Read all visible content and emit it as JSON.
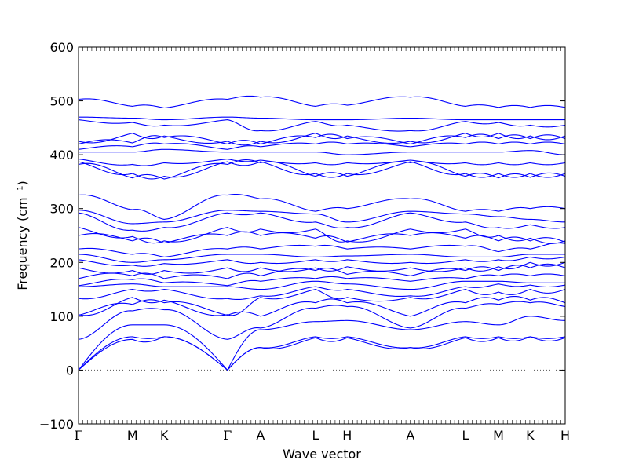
{
  "chart_data": {
    "type": "line",
    "title": "",
    "xlabel": "Wave vector",
    "ylabel": "Frequency (cm⁻¹)",
    "ylim": [
      -100,
      600
    ],
    "yticks": [
      -100,
      0,
      100,
      200,
      300,
      400,
      500,
      600
    ],
    "grid": false,
    "legend": "none",
    "line_color": "#0000ff",
    "zero_line": {
      "y": 0,
      "style": "dotted",
      "color": "#555555"
    },
    "segments": [
      {
        "from": "Γ",
        "to": "M"
      },
      {
        "from": "M",
        "to": "K"
      },
      {
        "from": "K",
        "to": "Γ"
      },
      {
        "from": "Γ",
        "to": "A"
      },
      {
        "from": "A",
        "to": "L"
      },
      {
        "from": "L",
        "to": "H"
      },
      {
        "from": "H",
        "to": "A"
      },
      {
        "from": "A",
        "to": "L"
      },
      {
        "from": "L",
        "to": "M"
      },
      {
        "from": "M",
        "to": "K"
      },
      {
        "from": "K",
        "to": "H"
      }
    ],
    "x_ticks": [
      {
        "label": "Γ",
        "pos": 0.0
      },
      {
        "label": "M",
        "pos": 0.111
      },
      {
        "label": "K",
        "pos": 0.176
      },
      {
        "label": "Γ",
        "pos": 0.306
      },
      {
        "label": "A",
        "pos": 0.374
      },
      {
        "label": "L",
        "pos": 0.487
      },
      {
        "label": "H",
        "pos": 0.552
      },
      {
        "label": "A",
        "pos": 0.682
      },
      {
        "label": "L",
        "pos": 0.795
      },
      {
        "label": "M",
        "pos": 0.863
      },
      {
        "label": "K",
        "pos": 0.928
      },
      {
        "label": "H",
        "pos": 1.0
      }
    ],
    "band_frequencies_at_high_symmetry_points": [
      {
        "label": "Γ",
        "values": [
          0,
          0,
          0,
          57,
          102,
          103,
          133,
          155,
          157,
          170,
          190,
          205,
          215,
          225,
          250,
          265,
          292,
          297,
          325,
          382,
          387,
          392,
          405,
          410,
          420,
          425,
          465,
          470,
          503
        ]
      },
      {
        "label": "M",
        "values": [
          57,
          62,
          84,
          110,
          122,
          135,
          150,
          160,
          168,
          175,
          185,
          195,
          200,
          215,
          240,
          248,
          260,
          272,
          298,
          357,
          365,
          382,
          405,
          415,
          422,
          440,
          460,
          468,
          490
        ]
      },
      {
        "label": "K",
        "values": [
          62,
          62,
          84,
          112,
          125,
          130,
          150,
          155,
          162,
          170,
          185,
          198,
          205,
          210,
          236,
          240,
          265,
          275,
          280,
          355,
          360,
          385,
          410,
          420,
          432,
          435,
          455,
          465,
          487
        ]
      },
      {
        "label": "Γ",
        "values": [
          0,
          0,
          0,
          57,
          102,
          103,
          133,
          155,
          157,
          170,
          190,
          205,
          215,
          225,
          250,
          265,
          292,
          297,
          325,
          382,
          387,
          392,
          405,
          410,
          420,
          425,
          465,
          470,
          503
        ]
      },
      {
        "label": "A",
        "values": [
          42,
          42,
          75,
          78,
          100,
          135,
          138,
          150,
          165,
          175,
          190,
          200,
          215,
          225,
          250,
          262,
          292,
          295,
          318,
          385,
          387,
          390,
          405,
          415,
          420,
          425,
          445,
          468,
          507
        ]
      },
      {
        "label": "L",
        "values": [
          60,
          62,
          90,
          115,
          125,
          150,
          155,
          165,
          170,
          185,
          190,
          205,
          210,
          230,
          245,
          262,
          275,
          290,
          295,
          360,
          365,
          385,
          405,
          420,
          432,
          440,
          462,
          465,
          490
        ]
      },
      {
        "label": "H",
        "values": [
          60,
          62,
          92,
          118,
          125,
          135,
          150,
          160,
          170,
          178,
          192,
          205,
          212,
          225,
          238,
          240,
          265,
          275,
          300,
          360,
          365,
          385,
          400,
          420,
          430,
          435,
          455,
          465,
          492
        ]
      },
      {
        "label": "A",
        "values": [
          42,
          42,
          75,
          78,
          100,
          135,
          138,
          150,
          165,
          175,
          190,
          200,
          215,
          225,
          250,
          262,
          292,
          295,
          318,
          385,
          387,
          390,
          405,
          415,
          420,
          425,
          445,
          468,
          507
        ]
      },
      {
        "label": "L",
        "values": [
          60,
          62,
          90,
          115,
          125,
          150,
          155,
          165,
          170,
          185,
          190,
          205,
          210,
          230,
          245,
          262,
          275,
          290,
          295,
          360,
          365,
          385,
          405,
          420,
          432,
          440,
          462,
          465,
          490
        ]
      },
      {
        "label": "M",
        "values": [
          60,
          62,
          84,
          122,
          130,
          145,
          160,
          165,
          175,
          185,
          192,
          205,
          210,
          220,
          240,
          250,
          265,
          285,
          295,
          357,
          365,
          385,
          405,
          420,
          430,
          440,
          460,
          465,
          488
        ]
      },
      {
        "label": "K",
        "values": [
          62,
          62,
          100,
          125,
          130,
          150,
          158,
          162,
          175,
          190,
          200,
          210,
          215,
          225,
          240,
          245,
          270,
          280,
          300,
          358,
          365,
          385,
          408,
          420,
          430,
          435,
          455,
          465,
          488
        ]
      },
      {
        "label": "H",
        "values": [
          60,
          62,
          92,
          118,
          125,
          150,
          158,
          162,
          175,
          190,
          200,
          210,
          215,
          235,
          238,
          240,
          265,
          275,
          300,
          360,
          365,
          385,
          400,
          420,
          430,
          435,
          455,
          465,
          488
        ]
      }
    ]
  }
}
